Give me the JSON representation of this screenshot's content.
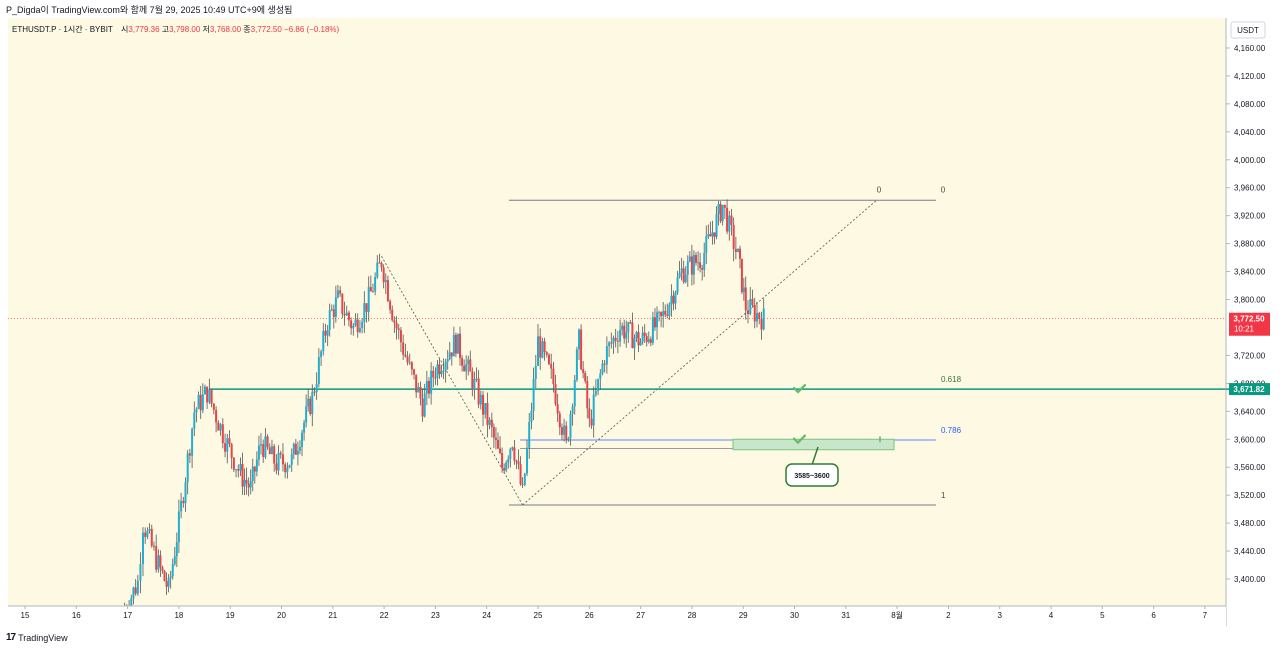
{
  "header": {
    "caption": "P_Digda이 TradingView.com와 함께 7월 29, 2025 10:49 UTC+9에 생성됨"
  },
  "symbol": {
    "name": "ETHUSDT.P · 1시간 · BYBIT",
    "open_label": "시",
    "open": "3,779.36",
    "high_label": "고",
    "high": "3,798.00",
    "low_label": "저",
    "low": "3,768.00",
    "close_label": "종",
    "close": "3,772.50",
    "change": "−6.86 (−0.18%)"
  },
  "price_axis": {
    "currency": "USDT",
    "ticks": [
      "4,160.00",
      "4,120.00",
      "4,080.00",
      "4,040.00",
      "4,000.00",
      "3,960.00",
      "3,920.00",
      "3,880.00",
      "3,840.00",
      "3,800.00",
      "3,720.00",
      "3,680.00",
      "3,640.00",
      "3,600.00",
      "3,560.00",
      "3,520.00",
      "3,480.00",
      "3,440.00",
      "3,400.00"
    ],
    "last_price_label": "3,772.50",
    "countdown_label": "10:21",
    "level_label": "3,671.82"
  },
  "time_axis": {
    "ticks": [
      "15",
      "16",
      "17",
      "18",
      "19",
      "20",
      "21",
      "22",
      "23",
      "24",
      "25",
      "26",
      "27",
      "28",
      "29",
      "30",
      "31",
      "8월",
      "2",
      "3",
      "4",
      "5",
      "6",
      "7"
    ]
  },
  "fib_labels": {
    "left_zero": "0",
    "right_zero": "0",
    "l618": "0.618",
    "l786": "0.786",
    "l1": "1"
  },
  "callout": {
    "text": "3585~3600"
  },
  "footer": {
    "logo_text": "TradingView"
  },
  "colors": {
    "up": "#26a69a",
    "up_candle": "#22aed1",
    "down": "#e8434a",
    "level_line": "#089981",
    "fib_786": "#2962ff",
    "zone_fill": "#c8e6c9",
    "background": "#fdf9e2"
  },
  "chart_data": {
    "type": "candlestick",
    "symbol": "ETHUSDT.P",
    "interval": "1시간",
    "exchange": "BYBIT",
    "ylim": [
      3380,
      4180
    ],
    "x_start_day": 15,
    "path_key_points": [
      {
        "day": 16.9,
        "price": 3350
      },
      {
        "day": 17.2,
        "price": 3395
      },
      {
        "day": 17.3,
        "price": 3480
      },
      {
        "day": 17.6,
        "price": 3420
      },
      {
        "day": 17.8,
        "price": 3385
      },
      {
        "day": 18.0,
        "price": 3480
      },
      {
        "day": 18.3,
        "price": 3640
      },
      {
        "day": 18.55,
        "price": 3668
      },
      {
        "day": 18.9,
        "price": 3600
      },
      {
        "day": 19.2,
        "price": 3550
      },
      {
        "day": 19.4,
        "price": 3530
      },
      {
        "day": 19.6,
        "price": 3595
      },
      {
        "day": 19.9,
        "price": 3565
      },
      {
        "day": 20.2,
        "price": 3570
      },
      {
        "day": 20.6,
        "price": 3660
      },
      {
        "day": 20.9,
        "price": 3770
      },
      {
        "day": 21.1,
        "price": 3800
      },
      {
        "day": 21.4,
        "price": 3760
      },
      {
        "day": 21.7,
        "price": 3800
      },
      {
        "day": 21.95,
        "price": 3855
      },
      {
        "day": 22.2,
        "price": 3770
      },
      {
        "day": 22.5,
        "price": 3700
      },
      {
        "day": 22.75,
        "price": 3650
      },
      {
        "day": 23.0,
        "price": 3700
      },
      {
        "day": 23.4,
        "price": 3740
      },
      {
        "day": 23.8,
        "price": 3670
      },
      {
        "day": 24.1,
        "price": 3610
      },
      {
        "day": 24.3,
        "price": 3560
      },
      {
        "day": 24.5,
        "price": 3600
      },
      {
        "day": 24.7,
        "price": 3520
      },
      {
        "day": 25.0,
        "price": 3740
      },
      {
        "day": 25.3,
        "price": 3680
      },
      {
        "day": 25.55,
        "price": 3590
      },
      {
        "day": 25.8,
        "price": 3740
      },
      {
        "day": 26.0,
        "price": 3620
      },
      {
        "day": 26.3,
        "price": 3720
      },
      {
        "day": 26.6,
        "price": 3760
      },
      {
        "day": 27.0,
        "price": 3740
      },
      {
        "day": 27.4,
        "price": 3770
      },
      {
        "day": 27.8,
        "price": 3840
      },
      {
        "day": 28.2,
        "price": 3860
      },
      {
        "day": 28.6,
        "price": 3935
      },
      {
        "day": 28.9,
        "price": 3860
      },
      {
        "day": 29.05,
        "price": 3790
      },
      {
        "day": 29.4,
        "price": 3772.5
      }
    ],
    "last_price": 3772.5,
    "horizontal_level": 3671.82,
    "fibonacci": {
      "price_0": 3942,
      "price_1": 3506,
      "levels": [
        {
          "label": "0",
          "price": 3942
        },
        {
          "label": "0.618",
          "price": 3671.82
        },
        {
          "label": "0.786",
          "price": 3599
        },
        {
          "label": "1",
          "price": 3506
        }
      ]
    },
    "zone": {
      "low": 3585,
      "high": 3600,
      "label": "3585~3600"
    },
    "trendlines": [
      {
        "from": {
          "day": 21.95,
          "price": 3862
        },
        "to": {
          "day": 24.7,
          "price": 3506
        }
      },
      {
        "from": {
          "day": 24.7,
          "price": 3506
        },
        "to": {
          "day": 31.6,
          "price": 3942
        }
      }
    ]
  }
}
